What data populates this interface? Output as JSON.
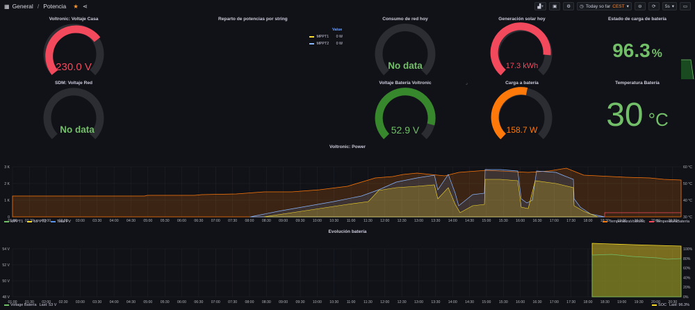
{
  "breadcrumb": {
    "folder": "General",
    "separator": "/",
    "dashboard": "Potencia"
  },
  "toolbar": {
    "time_range": "Today so far",
    "timezone": "CEST",
    "refresh_interval": "5s"
  },
  "colors": {
    "red": "#f2495c",
    "green": "#73bf69",
    "orange": "#ff780a",
    "darkgreen": "#37872d",
    "yellow": "#fade2a",
    "blue": "#8ab8ff",
    "track": "#2c2d33"
  },
  "panels": {
    "voltaje_casa": {
      "title": "Voltronic: Voltaje Casa",
      "value": "230.0 V",
      "fill": 0.72
    },
    "reparto": {
      "title": "Reparto de potencias por string",
      "header": "Value",
      "rows": [
        {
          "name": "MPPT1",
          "value": "0 W"
        },
        {
          "name": "MPPT2",
          "value": "0 W"
        }
      ]
    },
    "consumo_red": {
      "title": "Consumo de red hoy",
      "value": "No data"
    },
    "generacion_solar": {
      "title": "Generación solar hoy",
      "value": "17.3 kWh",
      "fill": 0.78
    },
    "estado_carga": {
      "title": "Estado de carga de batería",
      "value": "96.3",
      "unit": "%"
    },
    "voltaje_red": {
      "title": "SDM: Voltaje Red",
      "value": "No data"
    },
    "voltaje_bateria": {
      "title": "Voltaje Batería Voltronic",
      "value": "52.9 V",
      "fill": 0.86
    },
    "carga_bateria": {
      "title": "Carga a batería",
      "value": "158.7 W",
      "fill": 0.55
    },
    "temp_bateria": {
      "title": "Temperatura Batería",
      "value": "30",
      "unit": "°C"
    }
  },
  "power_chart": {
    "title": "Voltronic: Power",
    "x_labels": [
      "01:00",
      "01:30",
      "02:00",
      "02:30",
      "03:00",
      "03:30",
      "04:00",
      "04:30",
      "05:00",
      "05:30",
      "06:00",
      "06:30",
      "07:00",
      "07:30",
      "08:00",
      "08:30",
      "09:00",
      "09:30",
      "10:00",
      "10:30",
      "11:00",
      "11:30",
      "12:00",
      "12:30",
      "13:00",
      "13:30",
      "14:00",
      "14:30",
      "15:00",
      "15:30",
      "16:00",
      "16:30",
      "17:00",
      "17:30",
      "18:00",
      "18:30",
      "19:00",
      "19:30",
      "20:00",
      "20:30"
    ],
    "y_left": [
      "3 K",
      "2 K",
      "1 K",
      "0"
    ],
    "y_right": [
      "60 °C",
      "50 °C",
      "40 °C",
      "30 °C"
    ],
    "legend_left": [
      {
        "name": "MPPT1",
        "color": "#73bf69"
      },
      {
        "name": "MPPT2",
        "color": "#fade2a"
      },
      {
        "name": "Total FV",
        "color": "#5794f2"
      }
    ],
    "legend_right": [
      {
        "name": "TemperaturaVoltronic",
        "color": "#ff780a"
      },
      {
        "name": "TemperaturaBatería",
        "color": "#f2495c"
      }
    ]
  },
  "battery_chart": {
    "title": "Evolución batería",
    "x_labels": [
      "01:00",
      "01:30",
      "02:00",
      "02:30",
      "03:00",
      "03:30",
      "04:00",
      "04:30",
      "05:00",
      "05:30",
      "06:00",
      "06:30",
      "07:00",
      "07:30",
      "08:00",
      "08:30",
      "09:00",
      "09:30",
      "10:00",
      "10:30",
      "11:00",
      "11:30",
      "12:00",
      "12:30",
      "13:00",
      "13:30",
      "14:00",
      "14:30",
      "15:00",
      "15:30",
      "16:00",
      "16:30",
      "17:00",
      "17:30",
      "18:00",
      "18:30",
      "19:00",
      "19:30",
      "20:00",
      "20:30"
    ],
    "y_left": [
      "54 V",
      "52 V",
      "50 V",
      "48 V"
    ],
    "y_right": [
      "100%",
      "80%",
      "60%",
      "40%",
      "20%",
      "0%"
    ],
    "legend_left": {
      "name": "Voltage Batería",
      "stat": "Last: 53 V",
      "color": "#73bf69"
    },
    "legend_right": {
      "name": "SOC",
      "stat": "Last: 96.3%",
      "color": "#fade2a"
    }
  }
}
